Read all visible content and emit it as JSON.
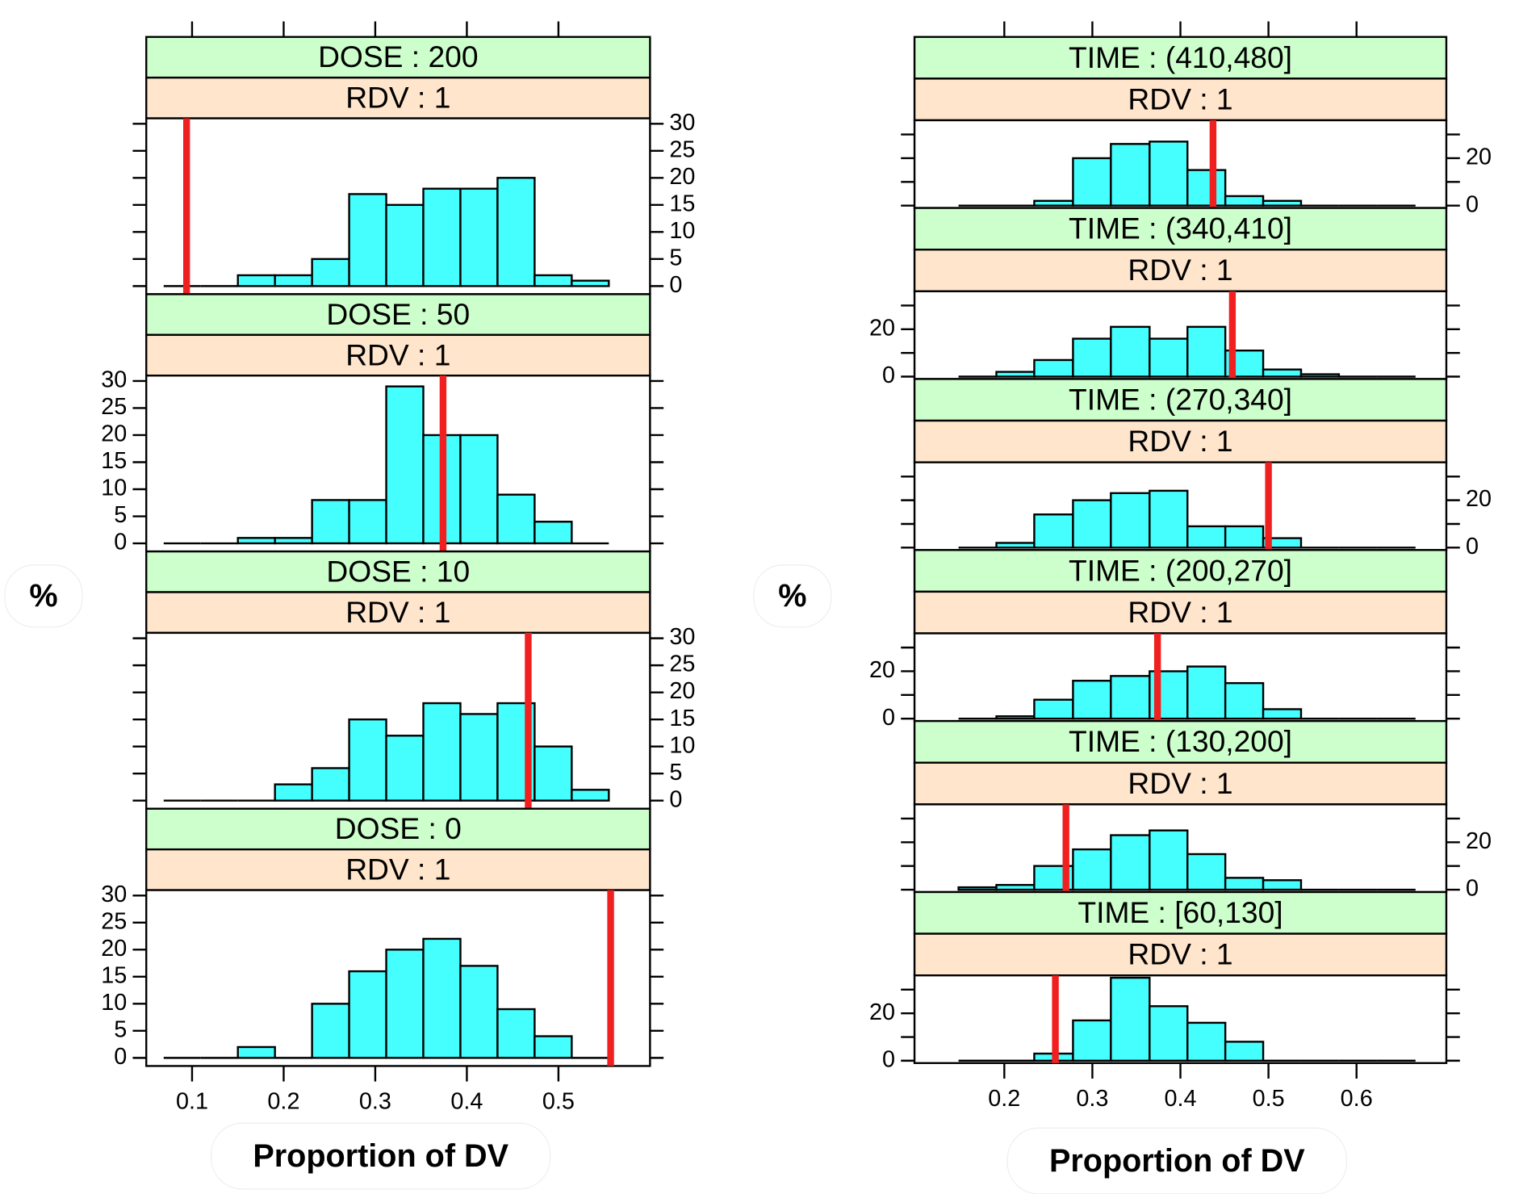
{
  "chart_data": [
    {
      "type": "histogram",
      "xlabel": "Proportion of DV",
      "ylabel": "%",
      "xlim": [
        0.05,
        0.6
      ],
      "xticks": [
        0.1,
        0.2,
        0.3,
        0.4,
        0.5
      ],
      "ylim": [
        -1.5,
        31
      ],
      "yticks": [
        0,
        5,
        10,
        15,
        20,
        25,
        30
      ],
      "bar_color": "#45ffff",
      "observed_color": "#f02020",
      "strip_colors": [
        "#ccffcc",
        "#ffe5cc"
      ],
      "bins": [
        0.069,
        0.1095,
        0.15,
        0.1905,
        0.231,
        0.2715,
        0.312,
        0.3525,
        0.393,
        0.4335,
        0.474,
        0.5145,
        0.555
      ],
      "panels": [
        {
          "strips": [
            "DOSE : 200",
            "RDV : 1"
          ],
          "counts": [
            0,
            0,
            2,
            2,
            5,
            17,
            15,
            18,
            18,
            20,
            2,
            1
          ],
          "observed": 0.094
        },
        {
          "strips": [
            "DOSE : 50",
            "RDV : 1"
          ],
          "counts": [
            0,
            0,
            1,
            1,
            8,
            8,
            29,
            20,
            20,
            9,
            4,
            0
          ],
          "observed": 0.374
        },
        {
          "strips": [
            "DOSE : 10",
            "RDV : 1"
          ],
          "counts": [
            0,
            0,
            0,
            3,
            6,
            15,
            12,
            18,
            16,
            18,
            10,
            2
          ],
          "observed": 0.467
        },
        {
          "strips": [
            "DOSE : 0",
            "RDV : 1"
          ],
          "counts": [
            0,
            0,
            2,
            0,
            10,
            16,
            20,
            22,
            17,
            9,
            4,
            0
          ],
          "observed": 0.557
        }
      ]
    },
    {
      "type": "histogram",
      "xlabel": "Proportion of DV",
      "ylabel": "%",
      "xlim": [
        0.098,
        0.702
      ],
      "xticks": [
        0.2,
        0.3,
        0.4,
        0.5,
        0.6
      ],
      "ylim": [
        -1,
        36
      ],
      "yticks": [
        0,
        20
      ],
      "yminorticks": [
        10,
        30
      ],
      "bar_color": "#45ffff",
      "observed_color": "#f02020",
      "strip_colors": [
        "#ccffcc",
        "#ffe5cc"
      ],
      "bins": [
        0.148,
        0.191,
        0.234,
        0.278,
        0.321,
        0.365,
        0.408,
        0.451,
        0.494,
        0.537,
        0.58,
        0.624,
        0.667
      ],
      "panels": [
        {
          "strips": [
            "TIME : (410,480]",
            "RDV : 1"
          ],
          "counts": [
            0,
            0,
            2,
            20,
            26,
            27,
            15,
            4,
            2,
            0,
            0,
            0
          ],
          "observed": 0.437
        },
        {
          "strips": [
            "TIME : (340,410]",
            "RDV : 1"
          ],
          "counts": [
            0,
            2,
            7,
            16,
            21,
            16,
            21,
            11,
            3,
            1,
            0,
            0
          ],
          "observed": 0.459
        },
        {
          "strips": [
            "TIME : (270,340]",
            "RDV : 1"
          ],
          "counts": [
            0,
            2,
            14,
            20,
            23,
            24,
            9,
            9,
            4,
            0,
            0,
            0
          ],
          "observed": 0.5
        },
        {
          "strips": [
            "TIME : (200,270]",
            "RDV : 1"
          ],
          "counts": [
            0,
            1,
            8,
            16,
            18,
            20,
            22,
            15,
            4,
            0,
            0,
            0
          ],
          "observed": 0.374
        },
        {
          "strips": [
            "TIME : (130,200]",
            "RDV : 1"
          ],
          "counts": [
            1,
            2,
            10,
            17,
            23,
            25,
            15,
            5,
            4,
            0,
            0,
            0
          ],
          "observed": 0.27
        },
        {
          "strips": [
            "TIME : [60,130]",
            "RDV : 1"
          ],
          "counts": [
            0,
            0,
            3,
            17,
            35,
            23,
            16,
            8,
            0,
            0,
            0,
            0
          ],
          "observed": 0.258
        }
      ]
    }
  ]
}
